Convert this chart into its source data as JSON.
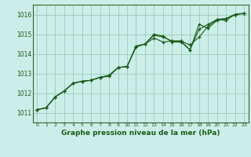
{
  "xlabel": "Graphe pression niveau de la mer (hPa)",
  "background_color": "#cceee8",
  "grid_color": "#99ccbb",
  "line_color": "#1a5c1a",
  "spine_color": "#336633",
  "x_ticks": [
    0,
    1,
    2,
    3,
    4,
    5,
    6,
    7,
    8,
    9,
    10,
    11,
    12,
    13,
    14,
    15,
    16,
    17,
    18,
    19,
    20,
    21,
    22,
    23
  ],
  "ylim": [
    1010.5,
    1016.5
  ],
  "y_ticks": [
    1011,
    1012,
    1013,
    1014,
    1015,
    1016
  ],
  "series1": [
    1011.15,
    1011.25,
    1011.8,
    1012.1,
    1012.5,
    1012.6,
    1012.65,
    1012.8,
    1012.9,
    1013.3,
    1013.35,
    1014.4,
    1014.5,
    1014.95,
    1014.85,
    1014.65,
    1014.65,
    1014.2,
    1015.25,
    1015.5,
    1015.75,
    1015.8,
    1016.0,
    1016.05
  ],
  "series2": [
    1011.15,
    1011.25,
    1011.8,
    1012.1,
    1012.5,
    1012.6,
    1012.65,
    1012.8,
    1012.9,
    1013.3,
    1013.35,
    1014.35,
    1014.5,
    1014.8,
    1014.6,
    1014.65,
    1014.65,
    1014.45,
    1014.85,
    1015.4,
    1015.75,
    1015.7,
    1016.0,
    1016.05
  ],
  "series3": [
    1011.15,
    1011.25,
    1011.8,
    1012.1,
    1012.5,
    1012.6,
    1012.65,
    1012.8,
    1012.85,
    1013.3,
    1013.35,
    1014.35,
    1014.5,
    1015.0,
    1014.9,
    1014.6,
    1014.6,
    1014.2,
    1015.5,
    1015.3,
    1015.7,
    1015.8,
    1016.0,
    1016.07
  ]
}
